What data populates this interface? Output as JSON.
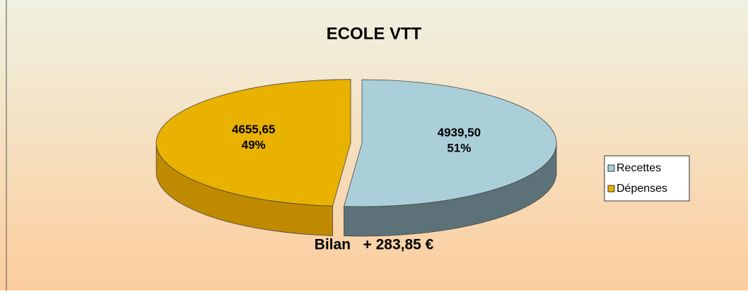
{
  "chart_data": {
    "type": "pie",
    "title": "ECOLE VTT",
    "categories": [
      "Recettes",
      "Dépenses"
    ],
    "values": [
      4939.5,
      4655.65
    ],
    "value_labels": [
      "4939,50",
      "4655,65"
    ],
    "percentages": [
      {
        "value": 51,
        "label": "51%"
      },
      {
        "value": 49,
        "label": "49%"
      }
    ],
    "colors": [
      "#aacfd8",
      "#e9b100"
    ],
    "side_colors": [
      "#5d7278",
      "#c08a00"
    ],
    "exploded": [
      false,
      true
    ],
    "legend": "right",
    "annotation": "Bilan   + 283,85 €"
  }
}
